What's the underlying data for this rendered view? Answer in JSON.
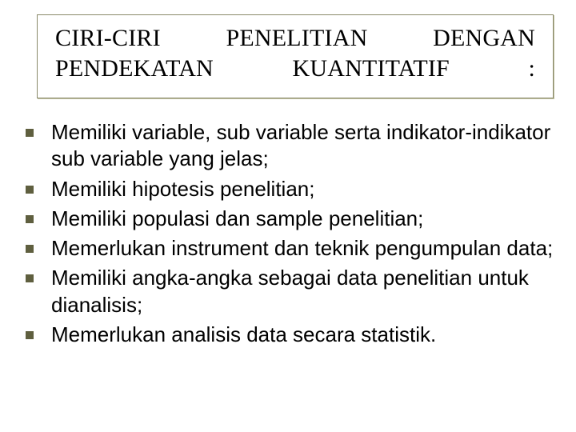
{
  "slide": {
    "title": "CIRI-CIRI PENELITIAN DENGAN PENDEKATAN KUANTITATIF :",
    "title_fontfamily": "Times New Roman",
    "title_fontsize": 30,
    "title_color": "#000000",
    "body_fontfamily": "Arial",
    "body_fontsize": 26,
    "body_color": "#000000",
    "bullet_color": "#5f5f3f",
    "bullet_size": 10,
    "background_color": "#ffffff",
    "titlebox_border_color": "#8a8a6a",
    "items": [
      "Memiliki variable, sub variable serta indikator-indikator  sub variable yang jelas;",
      "Memiliki hipotesis penelitian;",
      "Memiliki populasi dan sample penelitian;",
      "Memerlukan instrument dan teknik pengumpulan data;",
      "Memiliki angka-angka sebagai data penelitian untuk dianalisis;",
      "Memerlukan analisis data secara statistik."
    ]
  }
}
